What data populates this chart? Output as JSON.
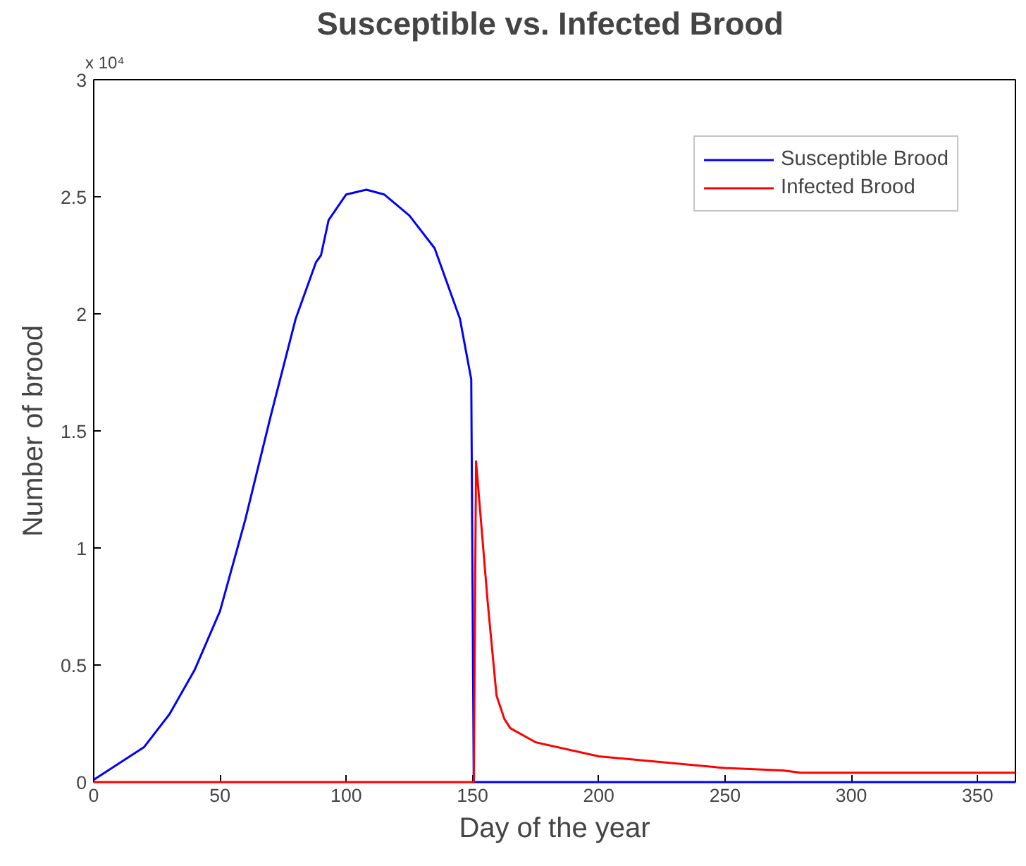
{
  "chart_data": {
    "type": "line",
    "title": "Susceptible vs. Infected  Brood",
    "xlabel": "Day of the year",
    "ylabel": "Number of brood",
    "annotations": [
      "x 10⁴"
    ],
    "xlim": [
      0,
      365
    ],
    "xticks": [
      0,
      50,
      100,
      150,
      200,
      250,
      300,
      350
    ],
    "ylim": [
      0,
      3
    ],
    "yticks": [
      0,
      0.5,
      1,
      1.5,
      2,
      2.5,
      3
    ],
    "grid": false,
    "legend": "top right",
    "marker": "none",
    "line_style": "solid",
    "series": [
      {
        "name": "Susceptible Brood",
        "color": "#0000ff",
        "x": [
          0,
          10,
          20,
          30,
          40,
          50,
          60,
          70,
          80,
          88,
          90,
          93,
          100,
          108,
          115,
          125,
          135,
          145,
          149.5,
          150.5,
          200,
          250,
          300,
          365
        ],
        "values": [
          0.01,
          0.08,
          0.15,
          0.29,
          0.48,
          0.73,
          1.12,
          1.56,
          1.98,
          2.22,
          2.25,
          2.4,
          2.51,
          2.53,
          2.51,
          2.42,
          2.28,
          1.98,
          1.72,
          0,
          0,
          0,
          0,
          0
        ]
      },
      {
        "name": "Infected Brood",
        "color": "#ff0000",
        "x": [
          0,
          100,
          150,
          150.5,
          151.4,
          156,
          159.5,
          162.6,
          165,
          175,
          200,
          250,
          273,
          280,
          320,
          365
        ],
        "values": [
          0,
          0,
          0,
          0,
          1.37,
          0.77,
          0.37,
          0.27,
          0.23,
          0.17,
          0.11,
          0.06,
          0.05,
          0.04,
          0.04,
          0.04
        ]
      }
    ]
  }
}
